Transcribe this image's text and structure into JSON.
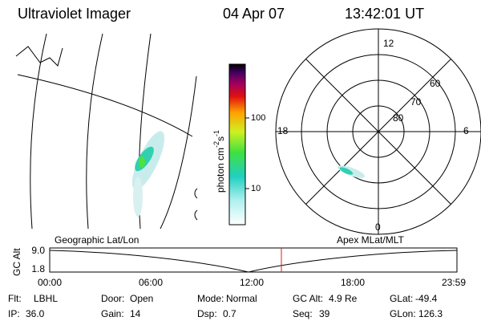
{
  "header": {
    "title": "Ultraviolet Imager",
    "date": "04 Apr 07",
    "time": "13:42:01 UT"
  },
  "colorbar": {
    "label": [
      "photon cm",
      "-2",
      "s",
      "-1"
    ],
    "ticks": [
      "100",
      "10"
    ]
  },
  "polar": {
    "mlt": [
      "12",
      "18",
      "6",
      "0"
    ],
    "mlat": [
      "60",
      "70",
      "80"
    ]
  },
  "timeline": {
    "axis_label": "GC Alt",
    "y_labels": [
      "9.0",
      "1.8"
    ],
    "left_label": "Geographic Lat/Lon",
    "right_label": "Apex MLat/MLT",
    "times": [
      "00:00",
      "06:00",
      "12:00",
      "18:00",
      "23:59"
    ]
  },
  "footer": {
    "rows": [
      [
        [
          "Flt:",
          "LBHL"
        ],
        [
          "Door:",
          "Open"
        ],
        [
          "Mode:",
          "Normal"
        ],
        [
          "GC Alt:",
          "4.9 Re"
        ],
        [
          "GLat:",
          "-49.4"
        ]
      ],
      [
        [
          "IP:",
          "36.0"
        ],
        [
          "Gain:",
          "14"
        ],
        [
          "Dsp:",
          "0.7"
        ],
        [
          "Seq:",
          "39"
        ],
        [
          "GLon:",
          "126.3"
        ]
      ]
    ]
  }
}
